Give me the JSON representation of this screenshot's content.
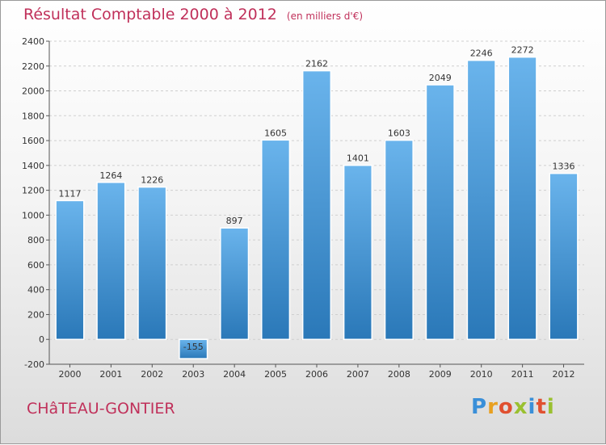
{
  "title": {
    "main": "Résultat Comptable 2000 à 2012",
    "unit": "(en milliers d'€)"
  },
  "commune": "CHâTEAU-GONTIER",
  "logo": {
    "letters": [
      "P",
      "r",
      "o",
      "x",
      "i",
      "t",
      "i"
    ],
    "colors": [
      "#3a8fd8",
      "#e8a020",
      "#e05030",
      "#9ac030",
      "#3a8fd8",
      "#e05030",
      "#9ac030"
    ]
  },
  "colors": {
    "bar_top": "#6ab4ec",
    "bar_bottom": "#2a78b8",
    "title": "#c0305a",
    "grid": "#cfcfcf"
  },
  "chart_data": {
    "type": "bar",
    "title": "Résultat Comptable 2000 à 2012",
    "xlabel": "",
    "ylabel": "",
    "categories": [
      "2000",
      "2001",
      "2002",
      "2003",
      "2004",
      "2005",
      "2006",
      "2007",
      "2008",
      "2009",
      "2010",
      "2011",
      "2012"
    ],
    "values": [
      1117,
      1264,
      1226,
      -155,
      897,
      1605,
      2162,
      1401,
      1603,
      2049,
      2246,
      2272,
      1336
    ],
    "ylim": [
      -200,
      2400
    ],
    "yticks": [
      -200,
      0,
      200,
      400,
      600,
      800,
      1000,
      1200,
      1400,
      1600,
      1800,
      2000,
      2200,
      2400
    ],
    "grid": true,
    "legend": "none"
  }
}
